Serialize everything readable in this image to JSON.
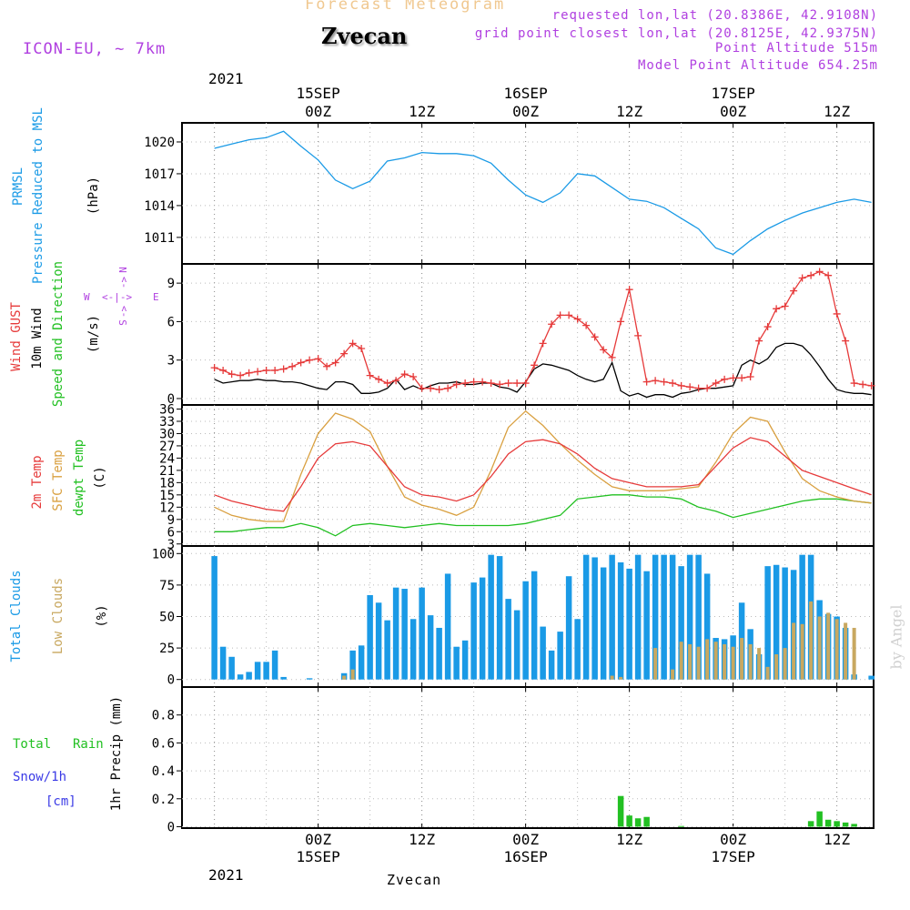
{
  "header": {
    "title": "Forecast Meteogram",
    "location": "Zvecan",
    "model": "ICON-EU, ~ 7km",
    "requested": "requested lon,lat (20.8386E, 42.9108N)",
    "grid": "grid point closest lon,lat (20.8125E, 42.9375N)",
    "point_alt": "Point Altitude 515m",
    "model_alt": "Model Point Altitude 654.25m",
    "footer": "Zvecan",
    "credit": "by Angel"
  },
  "colors": {
    "pressure": "#1a9ae6",
    "gust": "#e63a3a",
    "wind": "#000000",
    "temp2m": "#e63a3a",
    "sfc": "#d9a040",
    "dewpt": "#22c022",
    "total_clouds": "#1a9ae6",
    "low_clouds": "#c8a860",
    "rain": "#22c022",
    "snow": "#3a3ae6",
    "purple": "#b040e0"
  },
  "time_axis": {
    "year": "2021",
    "top_labels": [
      {
        "day": "15SEP",
        "hour": "00Z",
        "t": 12
      },
      {
        "day": "",
        "hour": "12Z",
        "t": 24
      },
      {
        "day": "16SEP",
        "hour": "00Z",
        "t": 36
      },
      {
        "day": "",
        "hour": "12Z",
        "t": 48
      },
      {
        "day": "17SEP",
        "hour": "00Z",
        "t": 60
      },
      {
        "day": "",
        "hour": "12Z",
        "t": 72
      }
    ]
  },
  "panel_labels": {
    "pressure": [
      "PRMSL",
      "Pressure Reduced to MSL",
      "(hPa)"
    ],
    "wind": [
      "Wind GUST",
      "10m Wind",
      "Speed and Direction",
      "(m/s)"
    ],
    "compass": {
      "n": "N",
      "s": "S",
      "w": "W",
      "e": "E"
    },
    "temp": [
      "2m Temp",
      "SFC Temp",
      "dewpt Temp",
      "(C)"
    ],
    "clouds": [
      "Total Clouds",
      "Low Clouds",
      "(%)"
    ],
    "precip": [
      "Total",
      "Rain",
      "Snow/1h",
      "[cm]",
      "1hr Precip (mm)"
    ]
  },
  "chart_data": [
    {
      "type": "line",
      "title": "PRMSL Pressure Reduced to MSL",
      "ylabel": "(hPa)",
      "ylim": [
        1008.5,
        1021.8
      ],
      "yticks": [
        1011,
        1014,
        1017,
        1020
      ],
      "x": [
        0,
        2,
        4,
        6,
        8,
        10,
        12,
        14,
        16,
        18,
        20,
        22,
        24,
        26,
        28,
        30,
        32,
        34,
        36,
        38,
        40,
        42,
        44,
        46,
        48,
        50,
        52,
        54,
        56,
        58,
        60,
        62,
        64,
        66,
        68,
        70,
        72,
        74,
        76
      ],
      "series": [
        {
          "name": "PRMSL",
          "values": [
            1019.4,
            1019.8,
            1020.2,
            1020.4,
            1021.0,
            1019.6,
            1018.3,
            1016.4,
            1015.6,
            1016.3,
            1018.2,
            1018.5,
            1019.0,
            1018.9,
            1018.9,
            1018.7,
            1018.0,
            1016.4,
            1015.0,
            1014.3,
            1015.2,
            1017.0,
            1016.8,
            1015.7,
            1014.6,
            1014.4,
            1013.8,
            1012.8,
            1011.8,
            1010.0,
            1009.4,
            1010.7,
            1011.8,
            1012.6,
            1013.3,
            1013.8,
            1014.3,
            1014.6,
            1014.3
          ]
        }
      ]
    },
    {
      "type": "line",
      "title": "Wind GUST / 10m Wind Speed and Direction",
      "ylabel": "(m/s)",
      "ylim": [
        -0.5,
        10.5
      ],
      "yticks": [
        0,
        3,
        6,
        9
      ],
      "x": [
        0,
        1,
        2,
        3,
        4,
        5,
        6,
        7,
        8,
        9,
        10,
        11,
        12,
        13,
        14,
        15,
        16,
        17,
        18,
        19,
        20,
        21,
        22,
        23,
        24,
        25,
        26,
        27,
        28,
        29,
        30,
        31,
        32,
        33,
        34,
        35,
        36,
        37,
        38,
        39,
        40,
        41,
        42,
        43,
        44,
        45,
        46,
        47,
        48,
        49,
        50,
        51,
        52,
        53,
        54,
        55,
        56,
        57,
        58,
        59,
        60,
        61,
        62,
        63,
        64,
        65,
        66,
        67,
        68,
        69,
        70,
        71,
        72,
        73,
        74,
        75,
        76
      ],
      "series": [
        {
          "name": "Wind GUST",
          "values": [
            2.4,
            2.2,
            1.9,
            1.8,
            2.0,
            2.1,
            2.2,
            2.2,
            2.3,
            2.5,
            2.8,
            3.0,
            3.1,
            2.5,
            2.8,
            3.5,
            4.3,
            3.9,
            1.8,
            1.5,
            1.2,
            1.4,
            1.9,
            1.7,
            0.8,
            0.8,
            0.7,
            0.8,
            1.1,
            1.2,
            1.3,
            1.3,
            1.2,
            1.1,
            1.2,
            1.2,
            1.2,
            2.6,
            4.3,
            5.8,
            6.5,
            6.5,
            6.2,
            5.7,
            4.8,
            3.8,
            3.2,
            6.0,
            8.5,
            4.9,
            1.3,
            1.4,
            1.3,
            1.2,
            1.0,
            0.9,
            0.8,
            0.8,
            1.2,
            1.5,
            1.6,
            1.6,
            1.7,
            4.5,
            5.6,
            7.0,
            7.2,
            8.4,
            9.4,
            9.6,
            9.9,
            9.6,
            6.6,
            4.5,
            1.2,
            1.1,
            1.0
          ]
        },
        {
          "name": "10m Wind",
          "values": [
            1.5,
            1.2,
            1.3,
            1.4,
            1.4,
            1.5,
            1.4,
            1.4,
            1.3,
            1.3,
            1.2,
            1.0,
            0.8,
            0.7,
            1.3,
            1.3,
            1.1,
            0.4,
            0.4,
            0.5,
            0.8,
            1.5,
            0.7,
            1.0,
            0.7,
            1.0,
            1.2,
            1.2,
            1.3,
            1.1,
            1.1,
            1.2,
            1.2,
            0.9,
            0.8,
            0.5,
            1.3,
            2.3,
            2.7,
            2.6,
            2.4,
            2.2,
            1.8,
            1.5,
            1.3,
            1.5,
            2.8,
            0.6,
            0.2,
            0.4,
            0.1,
            0.3,
            0.3,
            0.1,
            0.4,
            0.5,
            0.7,
            0.8,
            0.8,
            0.9,
            1.0,
            2.6,
            3.0,
            2.7,
            3.1,
            4.0,
            4.3,
            4.3,
            4.1,
            3.4,
            2.5,
            1.5,
            0.7,
            0.5,
            0.4,
            0.4,
            0.3
          ]
        }
      ]
    },
    {
      "type": "line",
      "title": "2m Temp / SFC Temp / dewpt Temp",
      "ylabel": "(C)",
      "ylim": [
        2.5,
        37
      ],
      "yticks": [
        3,
        6,
        9,
        12,
        15,
        18,
        21,
        24,
        27,
        30,
        33,
        36
      ],
      "x": [
        0,
        2,
        4,
        6,
        8,
        10,
        12,
        14,
        16,
        18,
        20,
        22,
        24,
        26,
        28,
        30,
        32,
        34,
        36,
        38,
        40,
        42,
        44,
        46,
        48,
        50,
        52,
        54,
        56,
        58,
        60,
        62,
        64,
        66,
        68,
        70,
        72,
        74,
        76
      ],
      "series": [
        {
          "name": "2m Temp",
          "values": [
            15.0,
            13.5,
            12.5,
            11.5,
            11.0,
            17.0,
            24.0,
            27.5,
            28.0,
            27.0,
            22.0,
            17.0,
            15.0,
            14.5,
            13.5,
            15.0,
            19.5,
            25.0,
            28.0,
            28.5,
            27.5,
            25.0,
            21.5,
            19.0,
            18.0,
            17.0,
            17.0,
            17.0,
            17.5,
            22.0,
            26.5,
            29.0,
            28.0,
            24.5,
            21.0,
            19.5,
            18.0,
            16.5,
            15.0
          ]
        },
        {
          "name": "SFC Temp",
          "values": [
            12.0,
            10.0,
            9.0,
            8.5,
            8.5,
            20.0,
            30.0,
            35.0,
            33.5,
            30.5,
            22.0,
            14.5,
            12.5,
            11.5,
            10.0,
            12.0,
            21.0,
            31.5,
            35.5,
            32.0,
            27.5,
            23.5,
            20.0,
            17.0,
            16.0,
            16.0,
            16.0,
            16.5,
            17.0,
            23.0,
            30.0,
            34.0,
            33.0,
            25.5,
            19.0,
            16.0,
            14.5,
            13.5,
            13.0
          ]
        },
        {
          "name": "dewpt Temp",
          "values": [
            6.0,
            6.0,
            6.5,
            7.0,
            7.0,
            8.0,
            7.0,
            5.0,
            7.5,
            8.0,
            7.5,
            7.0,
            7.5,
            8.0,
            7.5,
            7.5,
            7.5,
            7.5,
            8.0,
            9.0,
            10.0,
            14.0,
            14.5,
            15.0,
            15.0,
            14.5,
            14.5,
            14.0,
            12.0,
            11.0,
            9.5,
            10.5,
            11.5,
            12.5,
            13.5,
            14.0,
            14.0,
            13.5,
            13.0
          ]
        }
      ]
    },
    {
      "type": "bar",
      "title": "Total Clouds / Low Clouds",
      "ylabel": "(%)",
      "ylim": [
        -6,
        106
      ],
      "yticks": [
        0,
        25,
        50,
        75,
        100
      ],
      "x": [
        0,
        1,
        2,
        3,
        4,
        5,
        6,
        7,
        8,
        9,
        10,
        11,
        12,
        13,
        14,
        15,
        16,
        17,
        18,
        19,
        20,
        21,
        22,
        23,
        24,
        25,
        26,
        27,
        28,
        29,
        30,
        31,
        32,
        33,
        34,
        35,
        36,
        37,
        38,
        39,
        40,
        41,
        42,
        43,
        44,
        45,
        46,
        47,
        48,
        49,
        50,
        51,
        52,
        53,
        54,
        55,
        56,
        57,
        58,
        59,
        60,
        61,
        62,
        63,
        64,
        65,
        66,
        67,
        68,
        69,
        70,
        71,
        72,
        73,
        74,
        75,
        76
      ],
      "series": [
        {
          "name": "Total Clouds",
          "values": [
            98,
            26,
            18,
            4,
            6,
            14,
            14,
            23,
            2,
            0,
            0,
            1,
            0,
            0,
            0,
            5,
            23,
            27,
            67,
            61,
            47,
            73,
            72,
            48,
            73,
            51,
            41,
            84,
            26,
            31,
            77,
            81,
            99,
            98,
            64,
            55,
            78,
            86,
            42,
            23,
            38,
            82,
            48,
            99,
            97,
            89,
            99,
            93,
            88,
            99,
            86,
            99,
            99,
            99,
            90,
            99,
            99,
            84,
            33,
            32,
            35,
            61,
            40,
            20,
            90,
            91,
            89,
            87,
            99,
            99,
            63,
            52,
            50,
            41,
            4,
            0,
            3
          ]
        },
        {
          "name": "Low Clouds",
          "values": [
            0,
            0,
            0,
            0,
            0,
            0,
            0,
            0,
            0,
            0,
            0,
            0,
            0,
            0,
            0,
            3,
            8,
            0,
            0,
            0,
            0,
            0,
            0,
            0,
            0,
            0,
            0,
            0,
            0,
            0,
            0,
            0,
            0,
            0,
            0,
            0,
            0,
            0,
            0,
            0,
            0,
            0,
            0,
            0,
            0,
            0,
            3,
            2,
            0,
            0,
            0,
            25,
            0,
            8,
            30,
            28,
            26,
            32,
            30,
            28,
            26,
            33,
            28,
            25,
            10,
            20,
            25,
            45,
            44,
            62,
            50,
            53,
            48,
            45,
            41,
            0,
            0
          ]
        }
      ]
    },
    {
      "type": "bar",
      "title": "Total Rain / Snow per 1h",
      "ylabel": "1hr Precip (mm)",
      "ylim": [
        -0.01,
        1.0
      ],
      "yticks": [
        0,
        0.2,
        0.4,
        0.6,
        0.8
      ],
      "x": [
        47,
        48,
        49,
        50,
        51,
        54,
        69,
        70,
        71,
        72,
        73,
        74
      ],
      "series": [
        {
          "name": "Total Rain",
          "values": [
            0.22,
            0.08,
            0.06,
            0.07,
            0.0,
            0.005,
            0.04,
            0.11,
            0.05,
            0.04,
            0.03,
            0.02
          ]
        }
      ]
    }
  ]
}
